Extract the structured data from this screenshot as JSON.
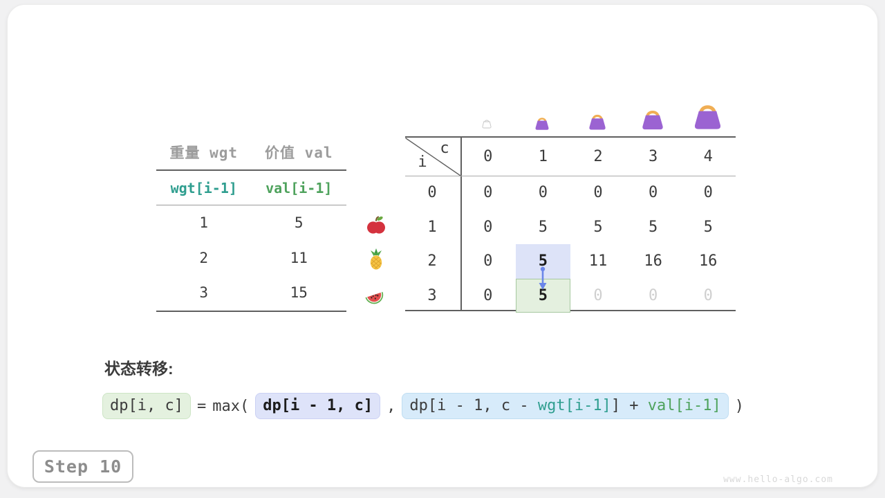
{
  "page": {
    "watermark": "www.hello-algo.com",
    "step_label": "Step 10"
  },
  "items_table": {
    "headers": [
      "重量 wgt",
      "价值 val"
    ],
    "subheaders": [
      "wgt[i-1]",
      "val[i-1]"
    ],
    "rows": [
      [
        "1",
        "5"
      ],
      [
        "2",
        "11"
      ],
      [
        "3",
        "15"
      ]
    ],
    "row_icons": [
      "apple-icon",
      "pineapple-icon",
      "watermelon-icon"
    ]
  },
  "dp_table": {
    "corner": {
      "col_var": "c",
      "row_var": "i"
    },
    "col_headers": [
      "0",
      "1",
      "2",
      "3",
      "4"
    ],
    "row_headers": [
      "0",
      "1",
      "2",
      "3"
    ],
    "cells": [
      [
        "0",
        "0",
        "0",
        "0",
        "0"
      ],
      [
        "0",
        "5",
        "5",
        "5",
        "5"
      ],
      [
        "0",
        "5",
        "11",
        "16",
        "16"
      ],
      [
        "0",
        "5",
        "0",
        "0",
        "0"
      ]
    ],
    "cell_styles": {
      "2,1": "hl-blue bold",
      "3,1": "hl-green bold",
      "3,2": "dim",
      "3,3": "dim",
      "3,4": "dim"
    },
    "bag_icon_columns": [
      "1",
      "2",
      "3",
      "4"
    ],
    "empty_bag_column": "0"
  },
  "transition": {
    "label": "状态转移:",
    "lhs": "dp[i, c]",
    "eq": "=",
    "max_open": "max(",
    "arg1": "dp[i - 1, c]",
    "comma": ",",
    "arg2_pre": "dp[i - 1, c - ",
    "arg2_wgt": "wgt[i-1]",
    "arg2_mid": "] + ",
    "arg2_val": "val[i-1]",
    "close": ")"
  },
  "colors": {
    "teal_code": "#2f9e8f",
    "green_code": "#4ea25c",
    "cell_blue_bg": "#dde3f8",
    "cell_green_bg": "#e4f0df",
    "formula_blue_bg": "#d7ebfa",
    "arrow_blue": "#6b86e9",
    "bag_purple": "#9b63d2",
    "bag_handle_orange": "#f0ae54",
    "dim_text": "#cfcfcf",
    "header_gray": "#9c9c9c"
  }
}
